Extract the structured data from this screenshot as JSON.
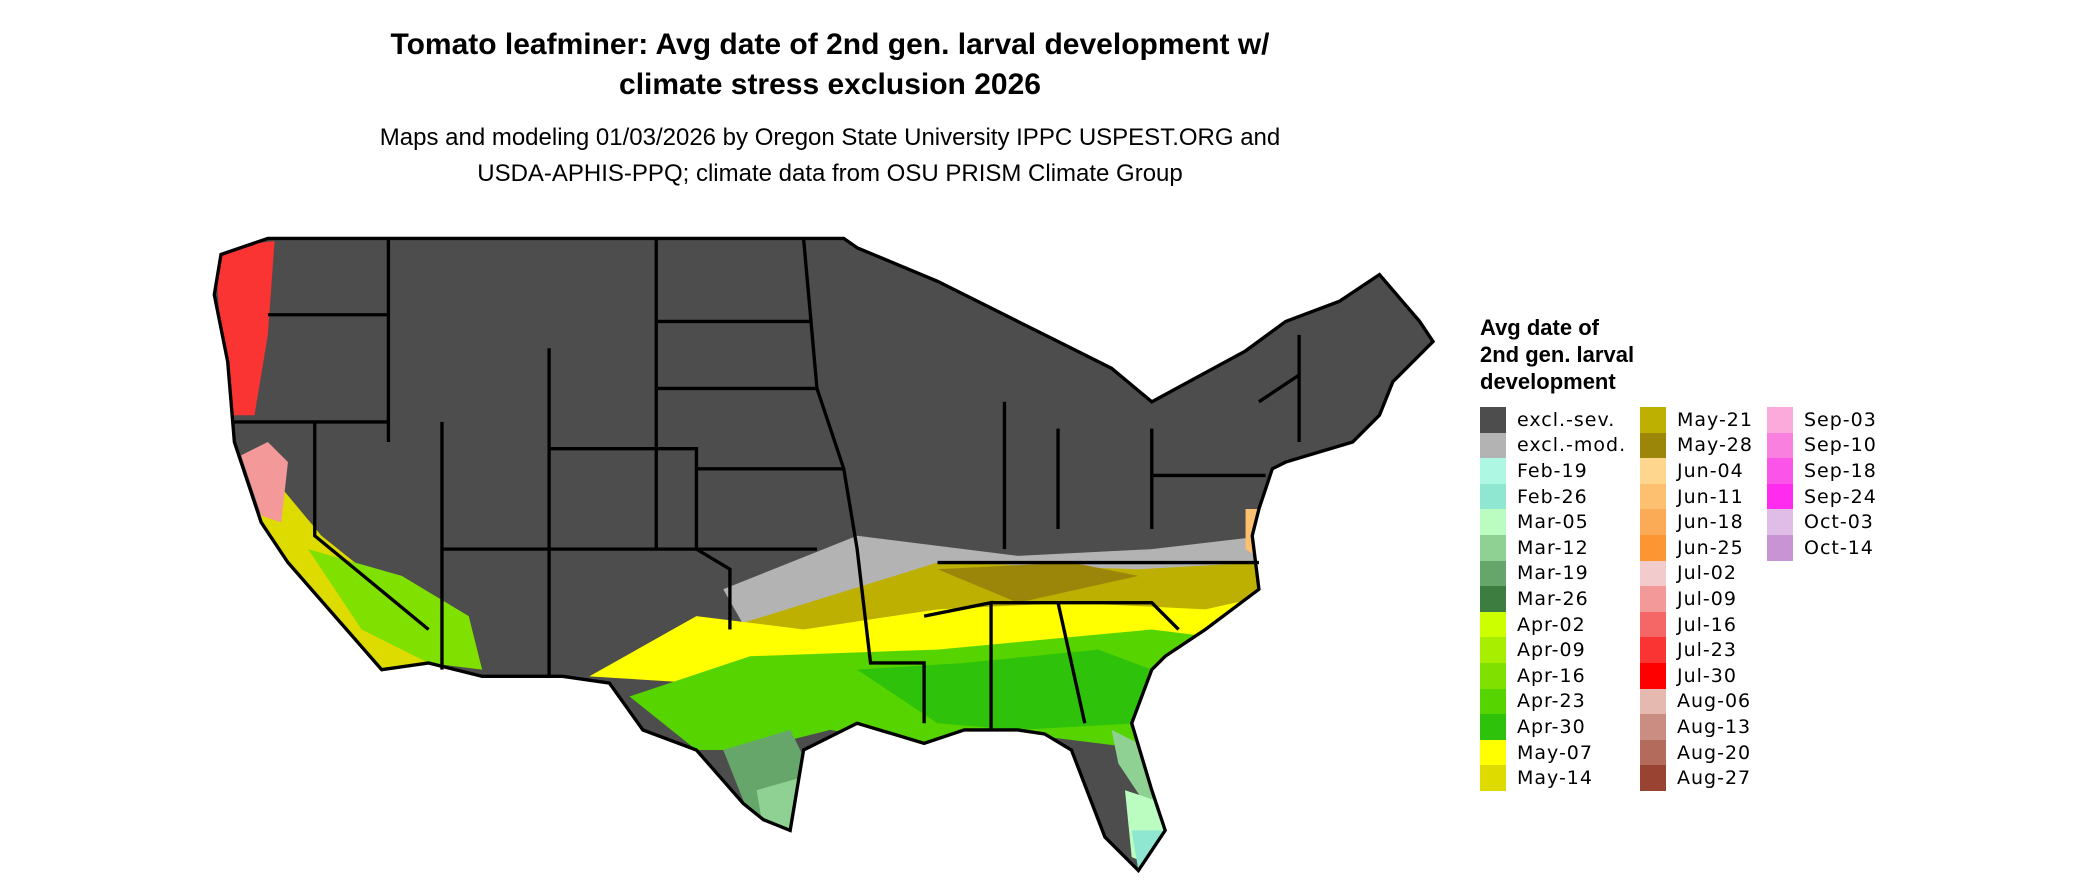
{
  "title": [
    "Tomato leafminer: Avg date of 2nd gen. larval development w/",
    "climate stress exclusion 2026"
  ],
  "subtitle": [
    "Maps and modeling 01/03/2026 by Oregon State University IPPC USPEST.ORG and",
    "USDA-APHIS-PPQ; climate data from OSU PRISM Climate Group"
  ],
  "legend": {
    "title": [
      "Avg date of",
      "2nd gen. larval",
      "development"
    ],
    "items": [
      {
        "label": "excl.-sev.",
        "color": "#4d4d4d"
      },
      {
        "label": "excl.-mod.",
        "color": "#b3b3b3"
      },
      {
        "label": "Feb-19",
        "color": "#adf7e3"
      },
      {
        "label": "Feb-26",
        "color": "#8fe6d1"
      },
      {
        "label": "Mar-05",
        "color": "#bbfdc1"
      },
      {
        "label": "Mar-12",
        "color": "#8fd193"
      },
      {
        "label": "Mar-19",
        "color": "#66a66a"
      },
      {
        "label": "Mar-26",
        "color": "#3d7d40"
      },
      {
        "label": "Apr-02",
        "color": "#ccff00"
      },
      {
        "label": "Apr-09",
        "color": "#a8ee00"
      },
      {
        "label": "Apr-16",
        "color": "#80e000"
      },
      {
        "label": "Apr-23",
        "color": "#55d400"
      },
      {
        "label": "Apr-30",
        "color": "#2ec20a"
      },
      {
        "label": "May-07",
        "color": "#ffff00"
      },
      {
        "label": "May-14",
        "color": "#dddb00"
      },
      {
        "label": "May-21",
        "color": "#bdb000"
      },
      {
        "label": "May-28",
        "color": "#9c860a"
      },
      {
        "label": "Jun-04",
        "color": "#fed68e"
      },
      {
        "label": "Jun-11",
        "color": "#fdc071"
      },
      {
        "label": "Jun-18",
        "color": "#fbaa55"
      },
      {
        "label": "Jun-25",
        "color": "#fc9633"
      },
      {
        "label": "Jul-02",
        "color": "#f2cccc"
      },
      {
        "label": "Jul-09",
        "color": "#f49999"
      },
      {
        "label": "Jul-16",
        "color": "#f56666"
      },
      {
        "label": "Jul-23",
        "color": "#fa3333"
      },
      {
        "label": "Jul-30",
        "color": "#ff0000"
      },
      {
        "label": "Aug-06",
        "color": "#e5b8b0"
      },
      {
        "label": "Aug-13",
        "color": "#c98d82"
      },
      {
        "label": "Aug-20",
        "color": "#b36b5c"
      },
      {
        "label": "Aug-27",
        "color": "#994433"
      },
      {
        "label": "Sep-03",
        "color": "#fbaadb"
      },
      {
        "label": "Sep-10",
        "color": "#fa80e0"
      },
      {
        "label": "Sep-18",
        "color": "#fa55e8"
      },
      {
        "label": "Sep-24",
        "color": "#ff2cf0"
      },
      {
        "label": "Oct-03",
        "color": "#e0bde6"
      },
      {
        "label": "Oct-14",
        "color": "#c994d4"
      }
    ]
  }
}
